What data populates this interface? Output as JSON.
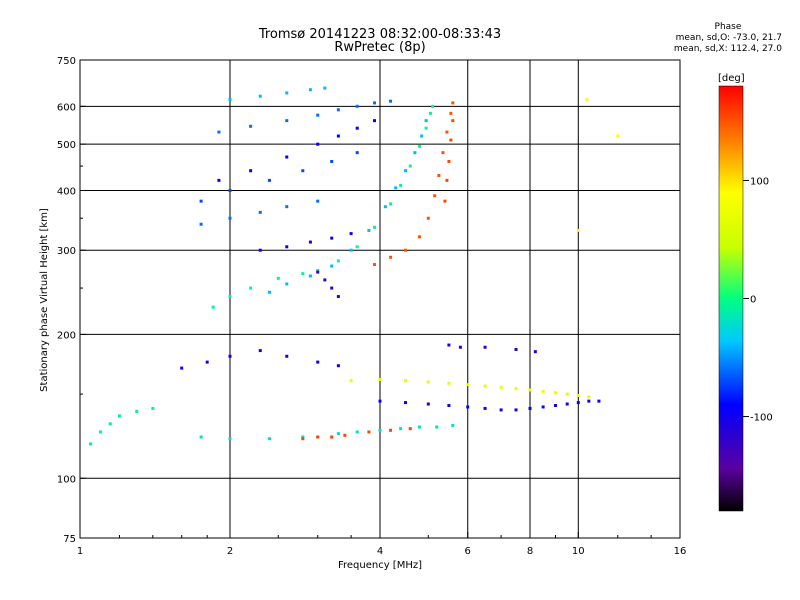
{
  "header": {
    "title": "Tromsø 20141223 08:32:00-08:33:43",
    "subtitle": "RwPretec (8p)"
  },
  "stats": {
    "heading": "Phase",
    "line_o": "mean, sd,O: -73.0, 21.7",
    "line_x": "mean, sd,X: 112.4, 27.0"
  },
  "chart_data": {
    "type": "scatter",
    "title": "Tromsø 20141223 08:32:00-08:33:43",
    "subtitle": "RwPretec (8p)",
    "xlabel": "Frequency [MHz]",
    "ylabel": "Stationary phase Virtual Height [km]",
    "x_scale": "log",
    "y_scale": "log",
    "xlim": [
      1,
      16
    ],
    "ylim": [
      75,
      750
    ],
    "x_ticks": [
      1,
      2,
      4,
      6,
      8,
      10,
      16
    ],
    "x_tick_labels": [
      "1",
      "2",
      "4",
      "6",
      "8",
      "10",
      "16"
    ],
    "x_grid": [
      2,
      4,
      6,
      8,
      10
    ],
    "y_ticks": [
      75,
      100,
      200,
      300,
      400,
      500,
      600,
      750
    ],
    "y_tick_labels": [
      "75",
      "100",
      "200",
      "300",
      "400",
      "500",
      "600",
      "750"
    ],
    "y_grid": [
      100,
      200,
      300,
      400,
      500,
      600
    ],
    "grid": true,
    "colorbar": {
      "label": "[deg]",
      "range": [
        -180,
        180
      ],
      "ticks": [
        100,
        0,
        -100
      ],
      "tick_labels": [
        "100",
        "0",
        "-100"
      ]
    },
    "series": [
      {
        "values": [
          [
            1.85,
            228
          ],
          [
            2.0,
            240
          ],
          [
            2.2,
            250
          ],
          [
            2.5,
            262
          ],
          [
            2.8,
            268
          ],
          [
            3.0,
            272
          ],
          [
            3.3,
            285
          ],
          [
            3.6,
            305
          ],
          [
            3.9,
            335
          ],
          [
            4.2,
            375
          ],
          [
            4.4,
            410
          ],
          [
            4.6,
            450
          ],
          [
            4.8,
            495
          ],
          [
            4.95,
            540
          ],
          [
            5.05,
            580
          ],
          [
            5.1,
            600
          ]
        ],
        "phase": -5
      },
      {
        "values": [
          [
            2.4,
            245
          ],
          [
            2.6,
            255
          ],
          [
            2.9,
            265
          ],
          [
            3.2,
            278
          ],
          [
            3.5,
            300
          ],
          [
            3.8,
            330
          ],
          [
            4.1,
            370
          ],
          [
            4.3,
            405
          ],
          [
            4.5,
            440
          ],
          [
            4.7,
            480
          ],
          [
            4.85,
            520
          ],
          [
            4.95,
            560
          ]
        ],
        "phase": -40
      },
      {
        "values": [
          [
            3.9,
            280
          ],
          [
            4.2,
            290
          ],
          [
            4.5,
            300
          ],
          [
            4.8,
            320
          ],
          [
            5.0,
            350
          ],
          [
            5.15,
            390
          ],
          [
            5.25,
            430
          ],
          [
            5.35,
            480
          ],
          [
            5.45,
            530
          ],
          [
            5.55,
            580
          ],
          [
            5.6,
            610
          ]
        ],
        "phase": 150
      },
      {
        "values": [
          [
            5.4,
            380
          ],
          [
            5.45,
            420
          ],
          [
            5.5,
            460
          ],
          [
            5.55,
            510
          ],
          [
            5.6,
            560
          ]
        ],
        "phase": 155
      },
      {
        "values": [
          [
            1.9,
            530
          ],
          [
            2.2,
            545
          ],
          [
            2.6,
            560
          ],
          [
            3.0,
            575
          ],
          [
            3.3,
            590
          ],
          [
            3.6,
            600
          ],
          [
            3.9,
            610
          ],
          [
            4.2,
            615
          ]
        ],
        "phase": -60
      },
      {
        "values": [
          [
            2.0,
            620
          ],
          [
            2.3,
            630
          ],
          [
            2.6,
            640
          ],
          [
            2.9,
            650
          ],
          [
            3.1,
            655
          ]
        ],
        "phase": -40
      },
      {
        "values": [
          [
            1.9,
            420
          ],
          [
            2.2,
            440
          ],
          [
            2.6,
            470
          ],
          [
            3.0,
            500
          ],
          [
            3.3,
            520
          ],
          [
            3.6,
            540
          ],
          [
            3.9,
            560
          ]
        ],
        "phase": -90
      },
      {
        "values": [
          [
            1.75,
            380
          ],
          [
            2.0,
            400
          ],
          [
            2.4,
            420
          ],
          [
            2.8,
            440
          ],
          [
            3.2,
            460
          ],
          [
            3.6,
            480
          ]
        ],
        "phase": -70
      },
      {
        "values": [
          [
            1.75,
            340
          ],
          [
            2.0,
            350
          ],
          [
            2.3,
            360
          ],
          [
            2.6,
            370
          ],
          [
            3.0,
            380
          ]
        ],
        "phase": -60
      },
      {
        "values": [
          [
            2.3,
            300
          ],
          [
            2.6,
            305
          ],
          [
            2.9,
            312
          ],
          [
            3.2,
            318
          ],
          [
            3.5,
            325
          ]
        ],
        "phase": -100
      },
      {
        "values": [
          [
            1.75,
            122
          ],
          [
            2.0,
            121
          ],
          [
            2.4,
            121
          ],
          [
            2.8,
            122
          ],
          [
            3.0,
            122
          ],
          [
            3.3,
            124
          ],
          [
            3.6,
            125
          ],
          [
            4.0,
            126
          ],
          [
            4.4,
            127
          ],
          [
            4.8,
            128
          ],
          [
            5.2,
            128
          ],
          [
            5.6,
            129
          ]
        ],
        "phase": -20
      },
      {
        "values": [
          [
            2.8,
            121
          ],
          [
            3.0,
            122
          ],
          [
            3.2,
            122
          ],
          [
            3.4,
            123
          ],
          [
            3.8,
            125
          ],
          [
            4.2,
            126
          ],
          [
            4.6,
            127
          ]
        ],
        "phase": 155
      },
      {
        "values": [
          [
            3.5,
            160
          ],
          [
            4.0,
            161
          ],
          [
            4.5,
            160
          ],
          [
            5.0,
            159
          ],
          [
            5.5,
            158
          ],
          [
            6.0,
            157
          ],
          [
            6.5,
            156
          ],
          [
            7.0,
            155
          ],
          [
            7.5,
            154
          ],
          [
            8.0,
            153
          ],
          [
            8.5,
            152
          ],
          [
            9.0,
            151
          ],
          [
            9.5,
            150
          ],
          [
            10.0,
            149
          ],
          [
            10.5,
            148
          ]
        ],
        "phase": 70
      },
      {
        "values": [
          [
            4.0,
            145
          ],
          [
            4.5,
            144
          ],
          [
            5.0,
            143
          ],
          [
            5.5,
            142
          ],
          [
            6.0,
            141
          ],
          [
            6.5,
            140
          ],
          [
            7.0,
            139
          ],
          [
            7.5,
            139
          ],
          [
            8.0,
            140
          ],
          [
            8.5,
            141
          ],
          [
            9.0,
            142
          ],
          [
            9.5,
            143
          ],
          [
            10.0,
            144
          ],
          [
            10.5,
            145
          ],
          [
            11.0,
            145
          ]
        ],
        "phase": -100
      },
      {
        "values": [
          [
            1.05,
            118
          ],
          [
            1.1,
            125
          ],
          [
            1.15,
            130
          ],
          [
            1.2,
            135
          ],
          [
            1.3,
            138
          ],
          [
            1.4,
            140
          ]
        ],
        "phase": -10
      },
      {
        "values": [
          [
            1.6,
            170
          ],
          [
            1.8,
            175
          ],
          [
            2.0,
            180
          ],
          [
            2.3,
            185
          ],
          [
            2.6,
            180
          ],
          [
            3.0,
            175
          ],
          [
            3.3,
            172
          ]
        ],
        "phase": -100
      },
      {
        "values": [
          [
            3.0,
            270
          ],
          [
            3.1,
            260
          ],
          [
            3.2,
            250
          ],
          [
            3.3,
            240
          ]
        ],
        "phase": -120
      },
      {
        "values": [
          [
            5.5,
            190
          ],
          [
            5.8,
            188
          ],
          [
            6.5,
            188
          ],
          [
            7.5,
            186
          ],
          [
            8.2,
            184
          ]
        ],
        "phase": -110
      },
      {
        "values": [
          [
            10.0,
            330
          ],
          [
            12.0,
            520
          ],
          [
            10.4,
            620
          ]
        ],
        "phase": 90
      }
    ]
  }
}
